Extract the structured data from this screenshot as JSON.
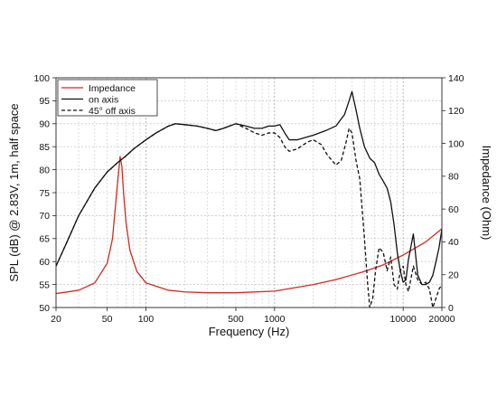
{
  "chart_data": {
    "type": "line",
    "title": "",
    "xlabel": "Frequency (Hz)",
    "ylabel": "SPL (dB) @ 2.83V, 1m, half space",
    "y2label": "Impedance (Ohm)",
    "x_scale": "log",
    "xlim": [
      20,
      20000
    ],
    "ylim": [
      50,
      100
    ],
    "y2lim": [
      0,
      140
    ],
    "x_ticks": [
      20,
      50,
      100,
      500,
      1000,
      10000,
      20000
    ],
    "x_tick_labels": [
      "20",
      "50",
      "100",
      "500",
      "1000",
      "10000",
      "20000"
    ],
    "y_ticks": [
      50,
      55,
      60,
      65,
      70,
      75,
      80,
      85,
      90,
      95,
      100
    ],
    "y_tick_labels": [
      "50",
      "55",
      "60",
      "65",
      "70",
      "75",
      "80",
      "85",
      "90",
      "95",
      "100"
    ],
    "y2_ticks": [
      0,
      20,
      40,
      60,
      80,
      100,
      120,
      140
    ],
    "y2_tick_labels": [
      "0",
      "20",
      "40",
      "60",
      "80",
      "100",
      "120",
      "140"
    ],
    "grid": true,
    "legend_position": "top-left",
    "series": [
      {
        "name": "Impedance",
        "axis": "right",
        "color": "#d42a1e",
        "dash": "solid",
        "x": [
          20,
          30,
          40,
          50,
          55,
          60,
          63,
          65,
          67,
          70,
          75,
          85,
          100,
          150,
          200,
          300,
          500,
          1000,
          2000,
          3000,
          5000,
          7000,
          10000,
          15000,
          20000
        ],
        "y": [
          8.5,
          10.5,
          15,
          27,
          42,
          75,
          92,
          86,
          70,
          52,
          35,
          22,
          15,
          10.5,
          9.5,
          9,
          9,
          10,
          14,
          17,
          22,
          26,
          32,
          40,
          48
        ]
      },
      {
        "name": "on axis",
        "axis": "left",
        "color": "#111111",
        "dash": "solid",
        "x": [
          20,
          25,
          30,
          40,
          50,
          60,
          70,
          80,
          100,
          120,
          150,
          170,
          200,
          250,
          300,
          350,
          400,
          500,
          600,
          700,
          800,
          900,
          1000,
          1100,
          1200,
          1300,
          1500,
          2000,
          2500,
          3000,
          3500,
          3800,
          4000,
          4300,
          4600,
          5000,
          5500,
          6000,
          6500,
          7000,
          7500,
          8000,
          8500,
          9000,
          9500,
          10000,
          10500,
          11000,
          12000,
          13000,
          14000,
          15000,
          16000,
          17000,
          18000,
          19000,
          20000
        ],
        "y": [
          59,
          65,
          70,
          76,
          79.5,
          81.5,
          83,
          84.5,
          86.5,
          88,
          89.5,
          90,
          89.8,
          89.5,
          89,
          88.5,
          89,
          90,
          89.5,
          89,
          89,
          89.5,
          89.5,
          89.8,
          88,
          86.5,
          86.5,
          87.5,
          88.5,
          89.5,
          92,
          95,
          97,
          93,
          89,
          85,
          82.5,
          81.5,
          79,
          77.5,
          76,
          73,
          68,
          62,
          58,
          55.5,
          56,
          60.5,
          66,
          57,
          55,
          55,
          55.5,
          57,
          60,
          63,
          67
        ]
      },
      {
        "name": "45° off axis",
        "axis": "left",
        "color": "#111111",
        "dash": "dashed",
        "x": [
          20,
          25,
          30,
          40,
          50,
          60,
          70,
          80,
          100,
          120,
          150,
          170,
          200,
          250,
          300,
          350,
          400,
          500,
          600,
          700,
          800,
          900,
          1000,
          1100,
          1200,
          1300,
          1500,
          1800,
          2000,
          2300,
          2600,
          2800,
          3000,
          3300,
          3600,
          3800,
          4000,
          4300,
          4600,
          5000,
          5300,
          5500,
          5800,
          6100,
          6500,
          7000,
          7500,
          8000,
          8500,
          9000,
          9500,
          10000,
          10500,
          11000,
          12000,
          13000,
          14000,
          15000,
          16000,
          17000,
          18000,
          19000,
          20000
        ],
        "y": [
          59,
          65,
          70,
          76,
          79.5,
          81.5,
          83,
          84.5,
          86.5,
          88,
          89.5,
          90,
          89.8,
          89.5,
          89,
          88.5,
          89,
          90,
          89,
          88,
          87.5,
          88,
          88,
          87,
          85,
          84,
          84.5,
          86,
          86.5,
          85.5,
          83,
          82,
          81,
          82,
          86,
          89,
          88,
          82,
          78,
          65,
          55,
          50,
          52,
          58,
          63,
          62,
          58,
          61,
          55,
          54,
          58,
          59,
          55,
          53.5,
          59,
          56,
          55,
          55.5,
          54,
          50,
          52,
          54,
          55
        ]
      }
    ]
  }
}
